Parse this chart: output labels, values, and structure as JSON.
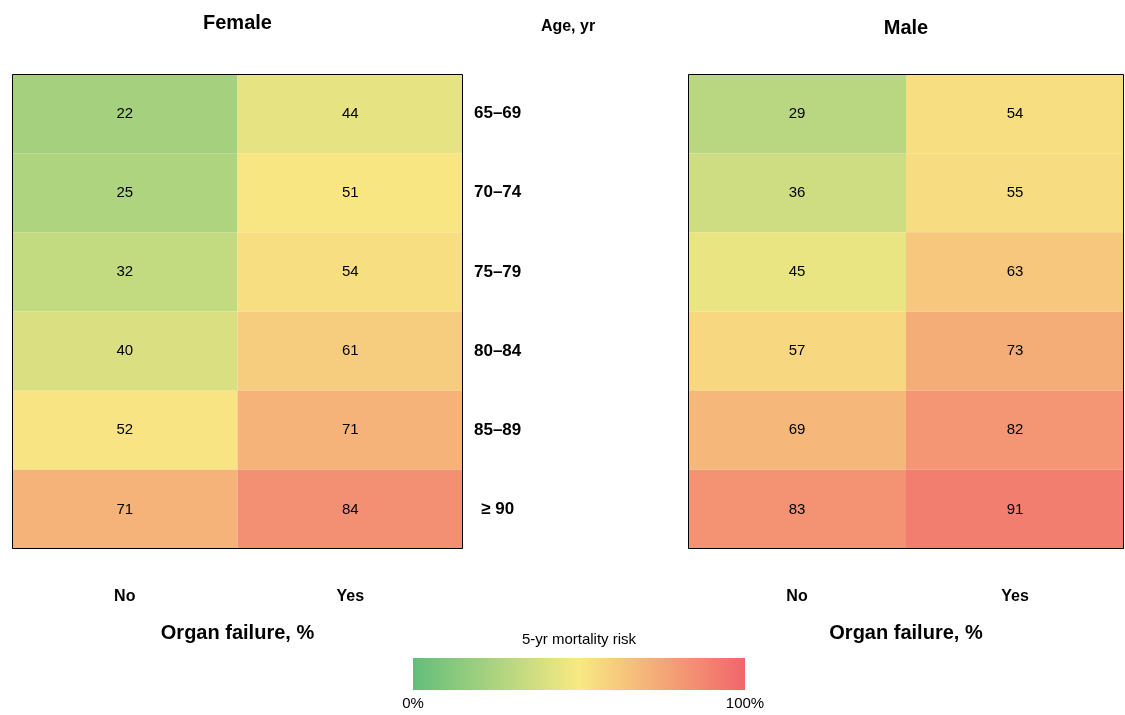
{
  "chart_data": [
    {
      "type": "heatmap",
      "title": "Female",
      "xlabel": "Organ failure, %",
      "ylabel": "Age, yr",
      "categories": [
        "No",
        "Yes"
      ],
      "y_categories": [
        "65–69",
        "70–74",
        "75–79",
        "80–84",
        "85–89",
        "≥ 90"
      ],
      "cells": [
        [
          22,
          44
        ],
        [
          25,
          51
        ],
        [
          32,
          54
        ],
        [
          40,
          61
        ],
        [
          52,
          71
        ],
        [
          71,
          84
        ]
      ],
      "data_labels": true,
      "clabel": "5-yr mortality risk",
      "clim": [
        0,
        100
      ],
      "cticks": [
        {
          "value": 0,
          "label": "0%"
        },
        {
          "value": 100,
          "label": "100%"
        }
      ]
    },
    {
      "type": "heatmap",
      "title": "Male",
      "xlabel": "Organ failure, %",
      "categories": [
        "No",
        "Yes"
      ],
      "y_categories": [
        null,
        null,
        null,
        null,
        null,
        null
      ],
      "cells": [
        [
          29,
          54
        ],
        [
          36,
          55
        ],
        [
          45,
          63
        ],
        [
          57,
          73
        ],
        [
          69,
          82
        ],
        [
          83,
          91
        ]
      ],
      "data_labels": true,
      "tick_labels": "x"
    }
  ]
}
